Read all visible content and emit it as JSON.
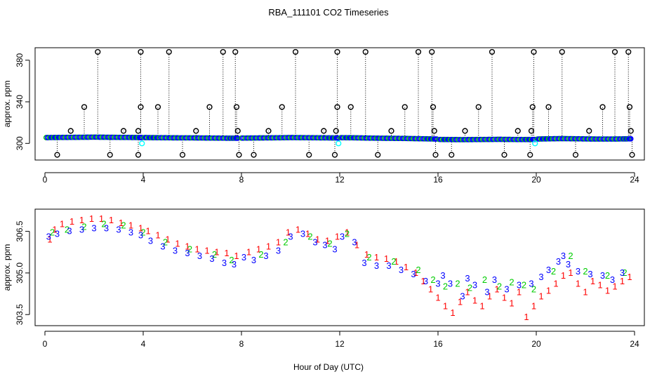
{
  "title": "RBA_111101  CO2 Timeseries",
  "xlabel": "Hour of Day (UTC)",
  "colors": {
    "outlier": "#000000",
    "stem": "#000000",
    "flag1": "#ff0000",
    "flag2": "#00cc00",
    "flag3": "#0000ff",
    "flag4": "#00ffff"
  },
  "chart_data": [
    {
      "type": "scatter",
      "panel": "top",
      "ylabel": "approx. ppm",
      "xlim": [
        -0.4,
        24.4
      ],
      "ylim": [
        284,
        392
      ],
      "xticks": [
        "0",
        "4",
        "8",
        "12",
        "16",
        "20",
        "24"
      ],
      "xtick_values": [
        0,
        4,
        8,
        12,
        16,
        20,
        24
      ],
      "yticks": [
        "300",
        "340",
        "380"
      ],
      "ytick_values": [
        300,
        340,
        380
      ],
      "marker": "o",
      "base_segments": [
        {
          "x": [
            0.05,
            0.5,
            1.0,
            1.5,
            2.0,
            2.5,
            3.0,
            3.5,
            3.95
          ],
          "y": [
            305.6,
            305.7,
            305.8,
            305.9,
            306.0,
            305.9,
            305.8,
            305.7,
            305.6
          ]
        },
        {
          "x": [
            4.05,
            4.5,
            5.0,
            5.5,
            6.0,
            6.5,
            7.0,
            7.5,
            7.85
          ],
          "y": [
            305.6,
            305.5,
            305.4,
            305.3,
            305.3,
            305.2,
            305.1,
            305.0,
            305.0
          ]
        },
        {
          "x": [
            8.0,
            8.5,
            9.0,
            9.5,
            10.0,
            10.5,
            11.0,
            11.5,
            11.95
          ],
          "y": [
            305.1,
            305.2,
            305.3,
            305.4,
            305.6,
            305.5,
            305.4,
            305.3,
            305.2
          ]
        },
        {
          "x": [
            12.05,
            12.5,
            13.0,
            13.5,
            14.0,
            14.5,
            15.0,
            15.5,
            15.95
          ],
          "y": [
            305.5,
            305.4,
            305.2,
            305.0,
            304.9,
            304.8,
            304.6,
            304.4,
            304.2
          ]
        },
        {
          "x": [
            16.05,
            16.5,
            17.0,
            17.5,
            18.0,
            18.5,
            19.0,
            19.5,
            19.95
          ],
          "y": [
            303.8,
            303.7,
            303.6,
            303.7,
            303.8,
            303.9,
            303.8,
            303.7,
            303.8
          ]
        },
        {
          "x": [
            20.05,
            20.5,
            21.0,
            21.5,
            22.0,
            22.5,
            23.0,
            23.5,
            23.85
          ],
          "y": [
            304.2,
            304.4,
            304.6,
            304.5,
            304.3,
            304.2,
            304.2,
            304.3,
            304.4
          ]
        }
      ],
      "outliers": {
        "x": [
          0.5,
          1.05,
          1.6,
          2.15,
          2.65,
          3.2,
          3.8,
          3.8,
          3.9,
          3.9,
          4.6,
          5.05,
          5.6,
          6.15,
          6.7,
          7.25,
          7.75,
          7.8,
          7.85,
          7.9,
          8.5,
          9.1,
          9.65,
          10.2,
          10.75,
          11.35,
          11.8,
          11.85,
          11.9,
          11.9,
          12.45,
          13.05,
          13.55,
          14.1,
          14.65,
          15.2,
          15.75,
          15.8,
          15.85,
          15.9,
          16.55,
          17.1,
          17.65,
          18.2,
          18.7,
          19.25,
          19.75,
          19.8,
          19.85,
          19.9,
          20.5,
          21.05,
          21.6,
          22.15,
          22.7,
          23.2,
          23.75,
          23.8,
          23.85,
          23.9
        ],
        "y": [
          289,
          312,
          335,
          388,
          289,
          312,
          289,
          312,
          335,
          388,
          335,
          388,
          289,
          312,
          335,
          388,
          388,
          335,
          312,
          289,
          289,
          312,
          335,
          388,
          289,
          312,
          289,
          312,
          335,
          388,
          335,
          388,
          289,
          312,
          335,
          388,
          388,
          335,
          312,
          289,
          289,
          312,
          335,
          388,
          289,
          312,
          289,
          312,
          335,
          388,
          335,
          388,
          289,
          312,
          335,
          388,
          388,
          335,
          312,
          289
        ]
      },
      "flag4_points": {
        "x": [
          3.95,
          11.95,
          19.95
        ],
        "y": [
          300,
          300,
          300
        ]
      }
    },
    {
      "type": "scatter",
      "panel": "bottom",
      "ylabel": "approx. ppm",
      "xlim": [
        -0.4,
        24.4
      ],
      "ylim": [
        303.1,
        307.3
      ],
      "xticks": [
        "0",
        "4",
        "8",
        "12",
        "16",
        "20",
        "24"
      ],
      "xtick_values": [
        0,
        4,
        8,
        12,
        16,
        20,
        24
      ],
      "yticks": [
        "303.5",
        "305.0",
        "306.5"
      ],
      "ytick_values": [
        303.5,
        305.0,
        306.5
      ],
      "series": [
        {
          "name": "3",
          "symbol": "3",
          "points": [
            [
              0.15,
              306.3
            ],
            [
              0.5,
              306.4
            ],
            [
              1.0,
              306.5
            ],
            [
              1.5,
              306.55
            ],
            [
              2.0,
              306.6
            ],
            [
              2.5,
              306.6
            ],
            [
              3.0,
              306.55
            ],
            [
              3.5,
              306.45
            ],
            [
              3.9,
              306.35
            ],
            [
              4.3,
              306.15
            ],
            [
              4.8,
              305.95
            ],
            [
              5.3,
              305.8
            ],
            [
              5.8,
              305.7
            ],
            [
              6.3,
              305.6
            ],
            [
              6.8,
              305.5
            ],
            [
              7.3,
              305.35
            ],
            [
              7.7,
              305.3
            ],
            [
              8.1,
              305.55
            ],
            [
              8.5,
              305.45
            ],
            [
              9.0,
              305.6
            ],
            [
              9.5,
              305.8
            ],
            [
              10.0,
              306.3
            ],
            [
              10.5,
              306.4
            ],
            [
              11.0,
              306.1
            ],
            [
              11.4,
              306.0
            ],
            [
              11.8,
              305.85
            ],
            [
              12.1,
              306.3
            ],
            [
              12.6,
              306.1
            ],
            [
              13.0,
              305.35
            ],
            [
              13.5,
              305.25
            ],
            [
              14.0,
              305.25
            ],
            [
              14.5,
              305.1
            ],
            [
              15.0,
              304.95
            ],
            [
              15.5,
              304.7
            ],
            [
              16.0,
              304.6
            ],
            [
              16.2,
              304.9
            ],
            [
              16.5,
              304.6
            ],
            [
              17.0,
              304.15
            ],
            [
              17.2,
              304.8
            ],
            [
              17.5,
              304.55
            ],
            [
              18.0,
              304.3
            ],
            [
              18.3,
              304.75
            ],
            [
              18.8,
              304.4
            ],
            [
              19.3,
              304.55
            ],
            [
              19.8,
              304.6
            ],
            [
              20.2,
              304.85
            ],
            [
              20.5,
              305.1
            ],
            [
              20.9,
              305.4
            ],
            [
              21.1,
              305.6
            ],
            [
              21.3,
              305.3
            ],
            [
              21.7,
              305.05
            ],
            [
              22.2,
              304.95
            ],
            [
              22.7,
              304.9
            ],
            [
              23.1,
              304.75
            ],
            [
              23.5,
              305.0
            ]
          ]
        },
        {
          "name": "2",
          "symbol": "2",
          "points": [
            [
              0.3,
              306.45
            ],
            [
              0.9,
              306.55
            ],
            [
              1.6,
              306.65
            ],
            [
              2.4,
              306.75
            ],
            [
              3.2,
              306.7
            ],
            [
              4.0,
              306.45
            ],
            [
              4.9,
              306.1
            ],
            [
              5.9,
              305.85
            ],
            [
              6.9,
              305.65
            ],
            [
              7.6,
              305.45
            ],
            [
              8.8,
              305.65
            ],
            [
              9.8,
              306.1
            ],
            [
              10.8,
              306.3
            ],
            [
              11.6,
              306.05
            ],
            [
              12.3,
              306.4
            ],
            [
              13.2,
              305.55
            ],
            [
              14.2,
              305.4
            ],
            [
              15.2,
              305.1
            ],
            [
              15.8,
              304.75
            ],
            [
              16.3,
              304.5
            ],
            [
              16.8,
              304.6
            ],
            [
              17.3,
              304.45
            ],
            [
              17.9,
              304.75
            ],
            [
              18.5,
              304.5
            ],
            [
              19.0,
              304.65
            ],
            [
              19.5,
              304.55
            ],
            [
              19.9,
              304.4
            ],
            [
              20.7,
              305.05
            ],
            [
              21.4,
              305.6
            ],
            [
              22.0,
              305.05
            ],
            [
              22.9,
              304.9
            ],
            [
              23.6,
              305.0
            ]
          ]
        },
        {
          "name": "1",
          "symbol": "1",
          "points": [
            [
              0.2,
              306.2
            ],
            [
              0.4,
              306.55
            ],
            [
              0.7,
              306.75
            ],
            [
              1.1,
              306.85
            ],
            [
              1.5,
              306.9
            ],
            [
              1.9,
              306.95
            ],
            [
              2.3,
              306.95
            ],
            [
              2.7,
              306.9
            ],
            [
              3.1,
              306.8
            ],
            [
              3.5,
              306.7
            ],
            [
              3.9,
              306.6
            ],
            [
              4.2,
              306.5
            ],
            [
              4.6,
              306.35
            ],
            [
              5.0,
              306.2
            ],
            [
              5.4,
              306.05
            ],
            [
              5.8,
              305.95
            ],
            [
              6.2,
              305.85
            ],
            [
              6.6,
              305.8
            ],
            [
              7.0,
              305.75
            ],
            [
              7.4,
              305.7
            ],
            [
              7.8,
              305.6
            ],
            [
              8.3,
              305.75
            ],
            [
              8.7,
              305.85
            ],
            [
              9.1,
              305.95
            ],
            [
              9.5,
              306.1
            ],
            [
              9.9,
              306.45
            ],
            [
              10.3,
              306.55
            ],
            [
              10.7,
              306.4
            ],
            [
              11.1,
              306.2
            ],
            [
              11.5,
              306.15
            ],
            [
              11.9,
              306.3
            ],
            [
              12.3,
              306.45
            ],
            [
              12.7,
              306.0
            ],
            [
              13.1,
              305.65
            ],
            [
              13.5,
              305.55
            ],
            [
              13.9,
              305.5
            ],
            [
              14.3,
              305.4
            ],
            [
              14.7,
              305.2
            ],
            [
              15.1,
              305.0
            ],
            [
              15.4,
              304.7
            ],
            [
              15.7,
              304.4
            ],
            [
              16.0,
              304.1
            ],
            [
              16.3,
              303.8
            ],
            [
              16.6,
              303.55
            ],
            [
              16.9,
              303.95
            ],
            [
              17.2,
              304.3
            ],
            [
              17.5,
              304.0
            ],
            [
              17.8,
              303.8
            ],
            [
              18.1,
              304.15
            ],
            [
              18.4,
              304.4
            ],
            [
              18.7,
              304.1
            ],
            [
              19.0,
              303.9
            ],
            [
              19.3,
              304.3
            ],
            [
              19.6,
              303.4
            ],
            [
              19.9,
              303.8
            ],
            [
              20.2,
              304.15
            ],
            [
              20.5,
              304.35
            ],
            [
              20.8,
              304.6
            ],
            [
              21.1,
              304.9
            ],
            [
              21.4,
              305.0
            ],
            [
              21.7,
              304.6
            ],
            [
              22.0,
              304.3
            ],
            [
              22.3,
              304.7
            ],
            [
              22.6,
              304.55
            ],
            [
              22.9,
              304.35
            ],
            [
              23.2,
              304.5
            ],
            [
              23.5,
              304.7
            ],
            [
              23.8,
              304.85
            ]
          ]
        }
      ]
    }
  ]
}
